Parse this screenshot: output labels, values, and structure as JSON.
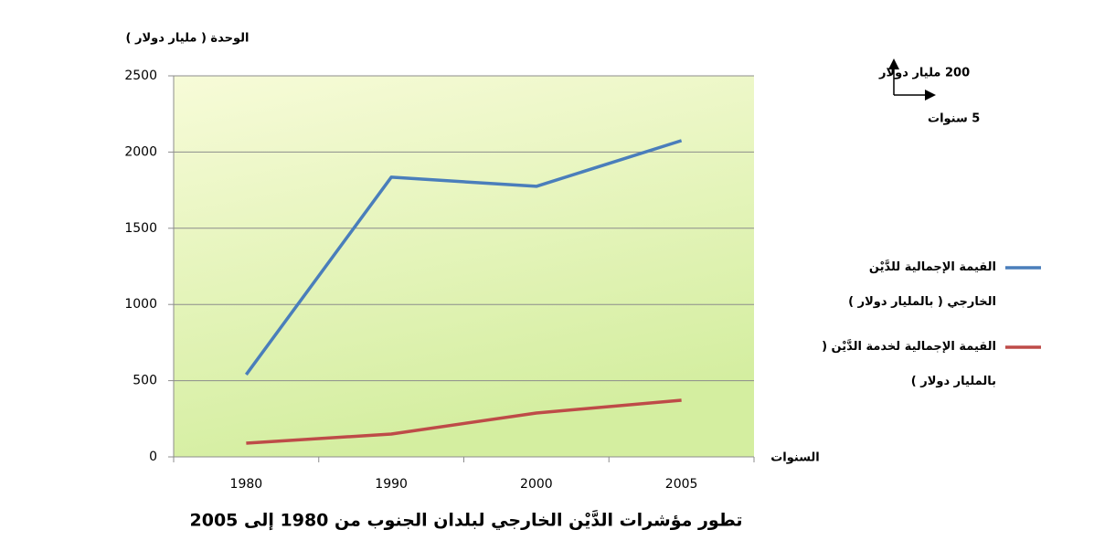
{
  "chart_data": {
    "type": "line",
    "title": "تطور مؤشرات الدَّيْن الخارجي لبلدان الجنوب من 1980 إلى 2005",
    "y_axis_label": "الوحدة ( مليار دولار )",
    "x_axis_label": "السنوات",
    "scale_annotations": [
      "200 مليار دولار",
      "5 سنوات"
    ],
    "categories": [
      "1980",
      "1990",
      "2000",
      "2005"
    ],
    "series": [
      {
        "name": "القيمة الإجمالية للدَّيْن الخارجي ( بالمليار دولار )",
        "color": "#4a7ebb",
        "values": [
          540,
          1835,
          1775,
          2075
        ]
      },
      {
        "name": "القيمة الإجمالية لخدمة الدَّيْن ( بالمليار دولار )",
        "color": "#be4b48",
        "values": [
          90,
          150,
          288,
          372
        ]
      }
    ],
    "ylim": [
      0,
      2500
    ],
    "yticks": [
      0,
      500,
      1000,
      1500,
      2000,
      2500
    ],
    "grid": true,
    "legend": "right"
  }
}
